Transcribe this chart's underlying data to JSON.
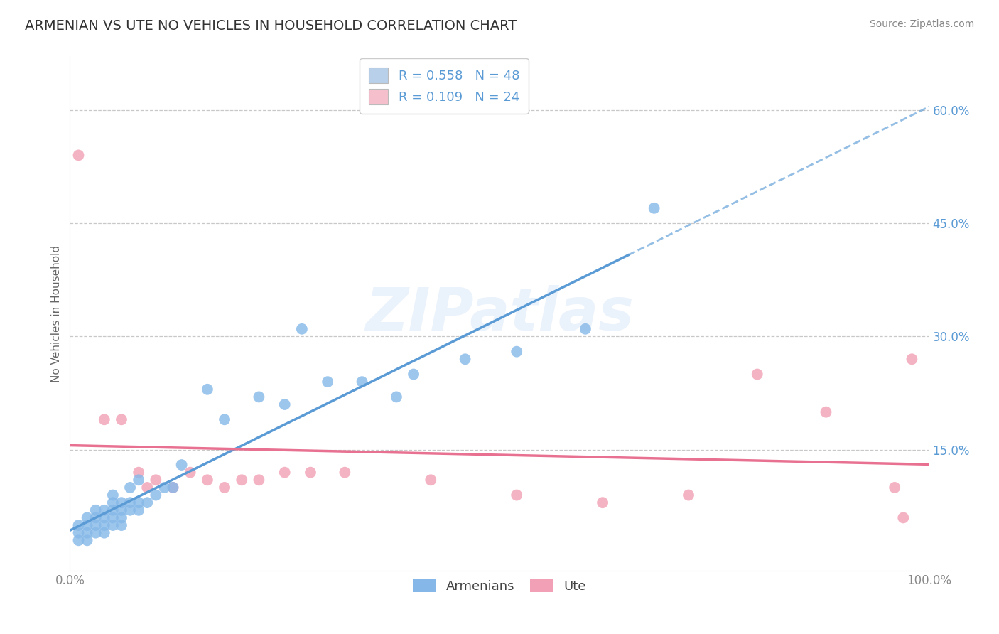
{
  "title": "ARMENIAN VS UTE NO VEHICLES IN HOUSEHOLD CORRELATION CHART",
  "source": "Source: ZipAtlas.com",
  "ylabel": "No Vehicles in Household",
  "xlim": [
    0.0,
    1.0
  ],
  "ylim": [
    -0.01,
    0.67
  ],
  "ytick_values": [
    0.15,
    0.3,
    0.45,
    0.6
  ],
  "ytick_labels": [
    "15.0%",
    "30.0%",
    "45.0%",
    "60.0%"
  ],
  "background_color": "#ffffff",
  "grid_color": "#c8c8c8",
  "watermark_text": "ZIPatlas",
  "armenian_color": "#85b8e8",
  "ute_color": "#f2a0b5",
  "armenian_line_color": "#5b9bd5",
  "ute_line_color": "#e87090",
  "armenian_R": 0.558,
  "armenian_N": 48,
  "ute_R": 0.109,
  "ute_N": 24,
  "legend_box_armenian": "#b8d0ea",
  "legend_box_ute": "#f5c0cc",
  "title_color": "#333333",
  "title_fontsize": 14,
  "axis_label_color": "#666666",
  "tick_color_x": "#888888",
  "tick_color_y": "#5b9bd5",
  "source_color": "#888888",
  "armenians_x": [
    0.01,
    0.01,
    0.01,
    0.02,
    0.02,
    0.02,
    0.02,
    0.03,
    0.03,
    0.03,
    0.03,
    0.04,
    0.04,
    0.04,
    0.04,
    0.05,
    0.05,
    0.05,
    0.05,
    0.05,
    0.06,
    0.06,
    0.06,
    0.06,
    0.07,
    0.07,
    0.07,
    0.08,
    0.08,
    0.08,
    0.09,
    0.1,
    0.11,
    0.12,
    0.13,
    0.16,
    0.18,
    0.22,
    0.25,
    0.27,
    0.3,
    0.34,
    0.38,
    0.4,
    0.46,
    0.52,
    0.6,
    0.68
  ],
  "armenians_y": [
    0.03,
    0.04,
    0.05,
    0.03,
    0.04,
    0.05,
    0.06,
    0.04,
    0.05,
    0.06,
    0.07,
    0.04,
    0.05,
    0.06,
    0.07,
    0.05,
    0.06,
    0.07,
    0.08,
    0.09,
    0.05,
    0.06,
    0.07,
    0.08,
    0.07,
    0.08,
    0.1,
    0.07,
    0.08,
    0.11,
    0.08,
    0.09,
    0.1,
    0.1,
    0.13,
    0.23,
    0.19,
    0.22,
    0.21,
    0.31,
    0.24,
    0.24,
    0.22,
    0.25,
    0.27,
    0.28,
    0.31,
    0.47
  ],
  "ute_x": [
    0.01,
    0.04,
    0.06,
    0.08,
    0.09,
    0.1,
    0.12,
    0.14,
    0.16,
    0.18,
    0.2,
    0.22,
    0.25,
    0.28,
    0.32,
    0.42,
    0.52,
    0.62,
    0.72,
    0.8,
    0.88,
    0.96,
    0.97,
    0.98
  ],
  "ute_y": [
    0.54,
    0.19,
    0.19,
    0.12,
    0.1,
    0.11,
    0.1,
    0.12,
    0.11,
    0.1,
    0.11,
    0.11,
    0.12,
    0.12,
    0.12,
    0.11,
    0.09,
    0.08,
    0.09,
    0.25,
    0.2,
    0.1,
    0.06,
    0.27
  ]
}
